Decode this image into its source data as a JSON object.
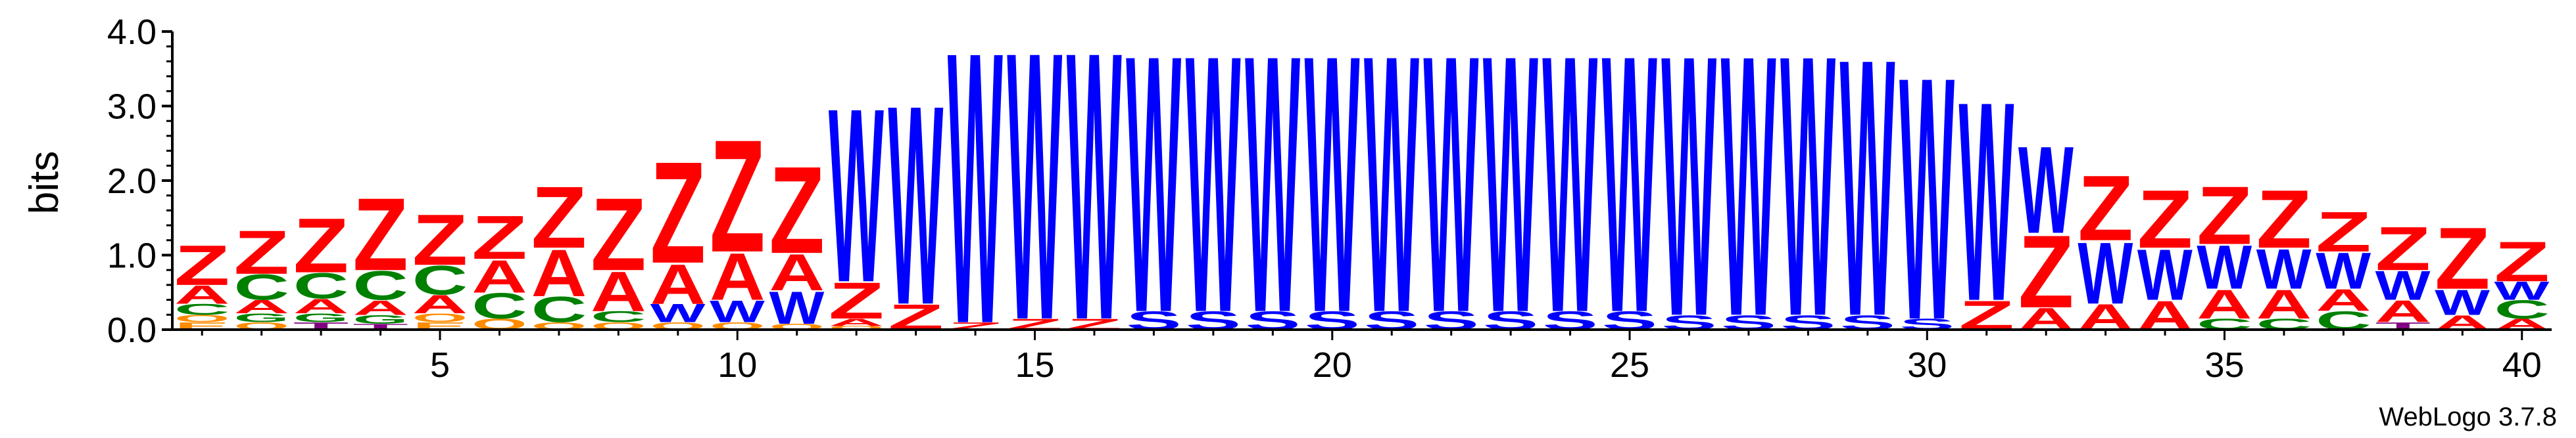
{
  "chart_data": {
    "type": "sequence-logo",
    "ylabel": "bits",
    "ylim": [
      0,
      4.0
    ],
    "y_ticks": [
      "0.0",
      "1.0",
      "2.0",
      "3.0",
      "4.0"
    ],
    "x_ticks": [
      "5",
      "10",
      "15",
      "20",
      "25",
      "30",
      "35",
      "40"
    ],
    "x_tick_values": [
      5,
      10,
      15,
      20,
      25,
      30,
      35,
      40
    ],
    "positions": 40,
    "colors": {
      "Z": "#ff0000",
      "A": "#ff0000",
      "W": "#0000ff",
      "S": "#0000ff",
      "C": "#008000",
      "G": "#008000",
      "O": "#ff8c00",
      "T": "#800080",
      "P": "#800080",
      "E": "#ff8c00"
    },
    "columns": [
      {
        "pos": 1,
        "stack": [
          [
            "E",
            0.1
          ],
          [
            "O",
            0.1
          ],
          [
            "C",
            0.15
          ],
          [
            "A",
            0.25
          ],
          [
            "Z",
            0.55
          ]
        ]
      },
      {
        "pos": 2,
        "stack": [
          [
            "O",
            0.1
          ],
          [
            "G",
            0.12
          ],
          [
            "A",
            0.18
          ],
          [
            "C",
            0.35
          ],
          [
            "Z",
            0.6
          ]
        ]
      },
      {
        "pos": 3,
        "stack": [
          [
            "T",
            0.1
          ],
          [
            "G",
            0.12
          ],
          [
            "A",
            0.2
          ],
          [
            "C",
            0.35
          ],
          [
            "Z",
            0.75
          ]
        ]
      },
      {
        "pos": 4,
        "stack": [
          [
            "T",
            0.08
          ],
          [
            "G",
            0.12
          ],
          [
            "A",
            0.2
          ],
          [
            "C",
            0.4
          ],
          [
            "Z",
            1.0
          ]
        ]
      },
      {
        "pos": 5,
        "stack": [
          [
            "E",
            0.1
          ],
          [
            "O",
            0.12
          ],
          [
            "A",
            0.25
          ],
          [
            "C",
            0.4
          ],
          [
            "Z",
            0.7
          ]
        ]
      },
      {
        "pos": 6,
        "stack": [
          [
            "O",
            0.15
          ],
          [
            "C",
            0.35
          ],
          [
            "A",
            0.45
          ],
          [
            "Z",
            0.6
          ]
        ]
      },
      {
        "pos": 7,
        "stack": [
          [
            "O",
            0.1
          ],
          [
            "C",
            0.35
          ],
          [
            "A",
            0.65
          ],
          [
            "Z",
            0.85
          ]
        ]
      },
      {
        "pos": 8,
        "stack": [
          [
            "O",
            0.1
          ],
          [
            "C",
            0.15
          ],
          [
            "A",
            0.55
          ],
          [
            "Z",
            1.0
          ]
        ]
      },
      {
        "pos": 9,
        "stack": [
          [
            "O",
            0.1
          ],
          [
            "W",
            0.25
          ],
          [
            "A",
            0.55
          ],
          [
            "Z",
            1.4
          ]
        ]
      },
      {
        "pos": 10,
        "stack": [
          [
            "O",
            0.1
          ],
          [
            "W",
            0.3
          ],
          [
            "A",
            0.65
          ],
          [
            "Z",
            1.55
          ]
        ]
      },
      {
        "pos": 11,
        "stack": [
          [
            "O",
            0.08
          ],
          [
            "W",
            0.45
          ],
          [
            "A",
            0.5
          ],
          [
            "Z",
            1.2
          ]
        ]
      },
      {
        "pos": 12,
        "stack": [
          [
            "O",
            0.05
          ],
          [
            "A",
            0.1
          ],
          [
            "Z",
            0.5
          ],
          [
            "W",
            2.4
          ]
        ]
      },
      {
        "pos": 13,
        "stack": [
          [
            "Z",
            0.35
          ],
          [
            "W",
            2.75
          ]
        ]
      },
      {
        "pos": 14,
        "stack": [
          [
            "Z",
            0.1
          ],
          [
            "W",
            3.75
          ]
        ]
      },
      {
        "pos": 15,
        "stack": [
          [
            "Z",
            0.15
          ],
          [
            "W",
            3.7
          ]
        ]
      },
      {
        "pos": 16,
        "stack": [
          [
            "Z",
            0.15
          ],
          [
            "W",
            3.7
          ]
        ]
      },
      {
        "pos": 17,
        "stack": [
          [
            "S",
            0.25
          ],
          [
            "W",
            3.55
          ]
        ]
      },
      {
        "pos": 18,
        "stack": [
          [
            "S",
            0.25
          ],
          [
            "W",
            3.55
          ]
        ]
      },
      {
        "pos": 19,
        "stack": [
          [
            "S",
            0.25
          ],
          [
            "W",
            3.55
          ]
        ]
      },
      {
        "pos": 20,
        "stack": [
          [
            "S",
            0.25
          ],
          [
            "W",
            3.55
          ]
        ]
      },
      {
        "pos": 21,
        "stack": [
          [
            "S",
            0.25
          ],
          [
            "W",
            3.55
          ]
        ]
      },
      {
        "pos": 22,
        "stack": [
          [
            "S",
            0.25
          ],
          [
            "W",
            3.55
          ]
        ]
      },
      {
        "pos": 23,
        "stack": [
          [
            "S",
            0.25
          ],
          [
            "W",
            3.55
          ]
        ]
      },
      {
        "pos": 24,
        "stack": [
          [
            "S",
            0.25
          ],
          [
            "W",
            3.55
          ]
        ]
      },
      {
        "pos": 25,
        "stack": [
          [
            "S",
            0.25
          ],
          [
            "W",
            3.55
          ]
        ]
      },
      {
        "pos": 26,
        "stack": [
          [
            "S",
            0.2
          ],
          [
            "W",
            3.6
          ]
        ]
      },
      {
        "pos": 27,
        "stack": [
          [
            "S",
            0.2
          ],
          [
            "W",
            3.6
          ]
        ]
      },
      {
        "pos": 28,
        "stack": [
          [
            "S",
            0.2
          ],
          [
            "W",
            3.6
          ]
        ]
      },
      {
        "pos": 29,
        "stack": [
          [
            "S",
            0.2
          ],
          [
            "W",
            3.55
          ]
        ]
      },
      {
        "pos": 30,
        "stack": [
          [
            "S",
            0.15
          ],
          [
            "W",
            3.35
          ]
        ]
      },
      {
        "pos": 31,
        "stack": [
          [
            "Z",
            0.4
          ],
          [
            "W",
            2.75
          ]
        ]
      },
      {
        "pos": 32,
        "stack": [
          [
            "A",
            0.3
          ],
          [
            "Z",
            1.0
          ],
          [
            "W",
            1.2
          ]
        ]
      },
      {
        "pos": 33,
        "stack": [
          [
            "A",
            0.35
          ],
          [
            "W",
            0.85
          ],
          [
            "Z",
            0.9
          ]
        ]
      },
      {
        "pos": 34,
        "stack": [
          [
            "A",
            0.4
          ],
          [
            "W",
            0.7
          ],
          [
            "Z",
            0.8
          ]
        ]
      },
      {
        "pos": 35,
        "stack": [
          [
            "C",
            0.15
          ],
          [
            "A",
            0.4
          ],
          [
            "W",
            0.6
          ],
          [
            "Z",
            0.8
          ]
        ]
      },
      {
        "pos": 36,
        "stack": [
          [
            "C",
            0.15
          ],
          [
            "A",
            0.4
          ],
          [
            "W",
            0.55
          ],
          [
            "Z",
            0.8
          ]
        ]
      },
      {
        "pos": 37,
        "stack": [
          [
            "C",
            0.25
          ],
          [
            "A",
            0.3
          ],
          [
            "W",
            0.5
          ],
          [
            "Z",
            0.55
          ]
        ]
      },
      {
        "pos": 38,
        "stack": [
          [
            "T",
            0.1
          ],
          [
            "A",
            0.3
          ],
          [
            "W",
            0.4
          ],
          [
            "Z",
            0.6
          ]
        ]
      },
      {
        "pos": 39,
        "stack": [
          [
            "A",
            0.2
          ],
          [
            "W",
            0.35
          ],
          [
            "Z",
            0.85
          ]
        ]
      },
      {
        "pos": 40,
        "stack": [
          [
            "A",
            0.15
          ],
          [
            "C",
            0.25
          ],
          [
            "W",
            0.25
          ],
          [
            "Z",
            0.55
          ]
        ]
      }
    ]
  },
  "footer": {
    "credit": "WebLogo 3.7.8"
  }
}
